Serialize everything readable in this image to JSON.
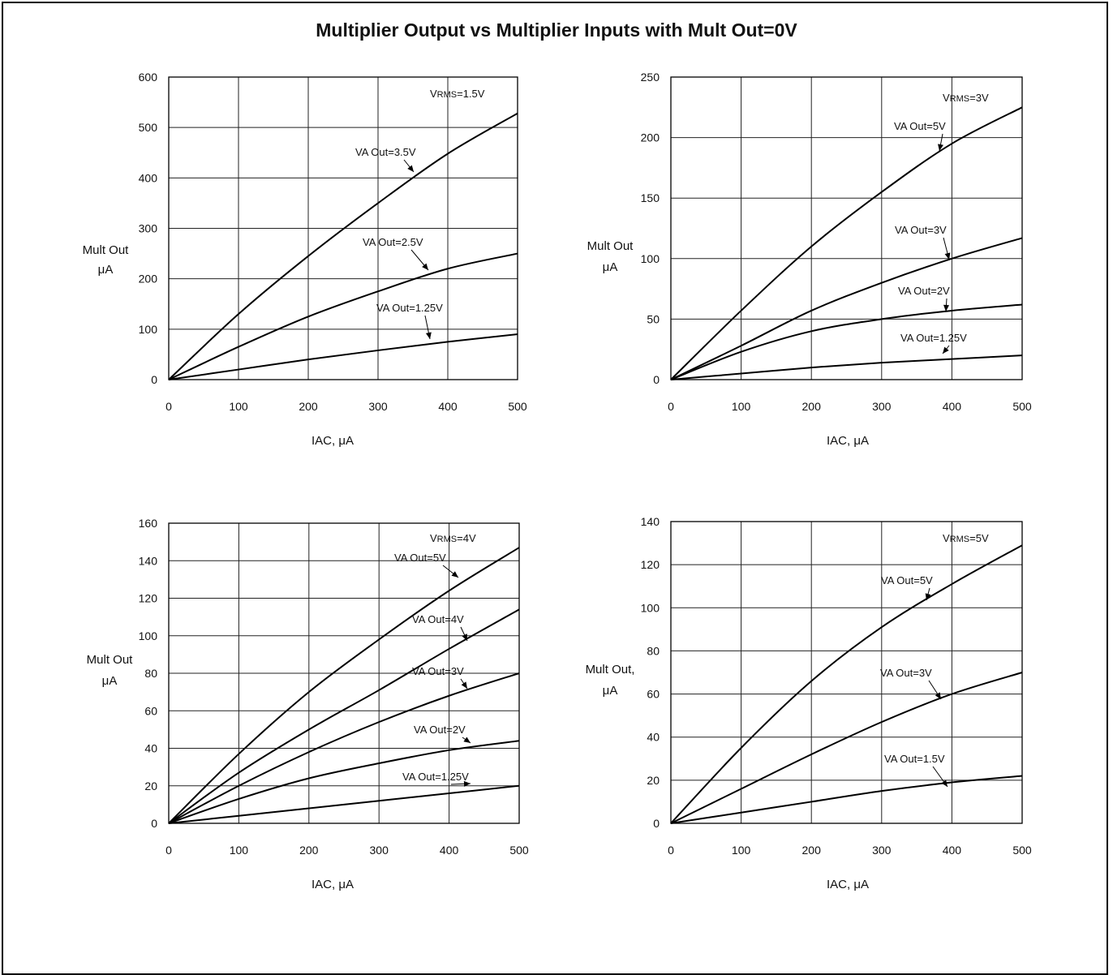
{
  "title": "Multiplier Output vs Multiplier Inputs with Mult Out=0V",
  "chart_data": [
    {
      "type": "line",
      "xlabel": "IAC, μA",
      "ylabel": [
        "Mult Out",
        "μA"
      ],
      "xlim": [
        0,
        500
      ],
      "ylim": [
        0,
        600
      ],
      "xticks": [
        0,
        100,
        200,
        300,
        400,
        500
      ],
      "yticks": [
        0,
        100,
        200,
        300,
        400,
        500,
        600
      ],
      "grid": true,
      "condition": {
        "prefix": "V",
        "sub": "RMS",
        "suffix": "=1.5V"
      },
      "series": [
        {
          "name": "VA Out=3.5V",
          "x": [
            0,
            100,
            200,
            300,
            400,
            500
          ],
          "y": [
            0,
            130,
            245,
            350,
            448,
            528
          ]
        },
        {
          "name": "VA Out=2.5V",
          "x": [
            0,
            100,
            200,
            300,
            400,
            500
          ],
          "y": [
            0,
            65,
            125,
            175,
            220,
            250
          ]
        },
        {
          "name": "VA Out=1.25V",
          "x": [
            0,
            100,
            200,
            300,
            400,
            500
          ],
          "y": [
            0,
            20,
            40,
            58,
            75,
            90
          ]
        }
      ]
    },
    {
      "type": "line",
      "xlabel": "IAC, μA",
      "ylabel": [
        "Mult Out",
        "μA"
      ],
      "xlim": [
        0,
        500
      ],
      "ylim": [
        0,
        250
      ],
      "xticks": [
        0,
        100,
        200,
        300,
        400,
        500
      ],
      "yticks": [
        0,
        50,
        100,
        150,
        200,
        250
      ],
      "grid": true,
      "condition": {
        "prefix": "V",
        "sub": "RMS",
        "suffix": "=3V"
      },
      "series": [
        {
          "name": "VA Out=5V",
          "x": [
            0,
            100,
            200,
            300,
            400,
            500
          ],
          "y": [
            0,
            57,
            110,
            155,
            195,
            225
          ]
        },
        {
          "name": "VA Out=3V",
          "x": [
            0,
            100,
            200,
            300,
            400,
            500
          ],
          "y": [
            0,
            28,
            57,
            80,
            100,
            117
          ]
        },
        {
          "name": "VA Out=2V",
          "x": [
            0,
            100,
            200,
            300,
            400,
            500
          ],
          "y": [
            0,
            23,
            40,
            50,
            57,
            62
          ]
        },
        {
          "name": "VA Out=1.25V",
          "x": [
            0,
            100,
            200,
            300,
            400,
            500
          ],
          "y": [
            0,
            5,
            10,
            14,
            17,
            20
          ]
        }
      ]
    },
    {
      "type": "line",
      "xlabel": "IAC, μA",
      "ylabel": [
        "Mult Out",
        "μA"
      ],
      "xlim": [
        0,
        500
      ],
      "ylim": [
        0,
        160
      ],
      "xticks": [
        0,
        100,
        200,
        300,
        400,
        500
      ],
      "yticks": [
        0,
        20,
        40,
        60,
        80,
        100,
        120,
        140,
        160
      ],
      "grid": true,
      "condition": {
        "prefix": "V",
        "sub": "RMS",
        "suffix": "=4V"
      },
      "series": [
        {
          "name": "VA Out=5V",
          "x": [
            0,
            100,
            200,
            300,
            400,
            500
          ],
          "y": [
            0,
            37,
            70,
            98,
            124,
            147
          ]
        },
        {
          "name": "VA Out=4V",
          "x": [
            0,
            100,
            200,
            300,
            400,
            500
          ],
          "y": [
            0,
            27,
            50,
            71,
            93,
            114
          ]
        },
        {
          "name": "VA Out=3V",
          "x": [
            0,
            100,
            200,
            300,
            400,
            500
          ],
          "y": [
            0,
            20,
            38,
            54,
            68,
            80
          ]
        },
        {
          "name": "VA Out=2V",
          "x": [
            0,
            100,
            200,
            300,
            400,
            500
          ],
          "y": [
            0,
            13,
            24,
            32,
            39,
            44
          ]
        },
        {
          "name": "VA Out=1.25V",
          "x": [
            0,
            100,
            200,
            300,
            400,
            500
          ],
          "y": [
            0,
            4,
            8,
            12,
            16,
            20
          ]
        }
      ]
    },
    {
      "type": "line",
      "xlabel": "IAC, μA",
      "ylabel": [
        "Mult Out,",
        "μA"
      ],
      "xlim": [
        0,
        500
      ],
      "ylim": [
        0,
        140
      ],
      "xticks": [
        0,
        100,
        200,
        300,
        400,
        500
      ],
      "yticks": [
        0,
        20,
        40,
        60,
        80,
        100,
        120,
        140
      ],
      "grid": true,
      "condition": {
        "prefix": "V",
        "sub": "RMS",
        "suffix": "=5V"
      },
      "series": [
        {
          "name": "VA Out=5V",
          "x": [
            0,
            100,
            200,
            300,
            400,
            500
          ],
          "y": [
            0,
            35,
            66,
            91,
            111,
            129
          ]
        },
        {
          "name": "VA Out=3V",
          "x": [
            0,
            100,
            200,
            300,
            400,
            500
          ],
          "y": [
            0,
            16,
            32,
            47,
            60,
            70
          ]
        },
        {
          "name": "VA Out=1.5V",
          "x": [
            0,
            100,
            200,
            300,
            400,
            500
          ],
          "y": [
            0,
            5,
            10,
            15,
            19,
            22
          ]
        }
      ]
    }
  ]
}
